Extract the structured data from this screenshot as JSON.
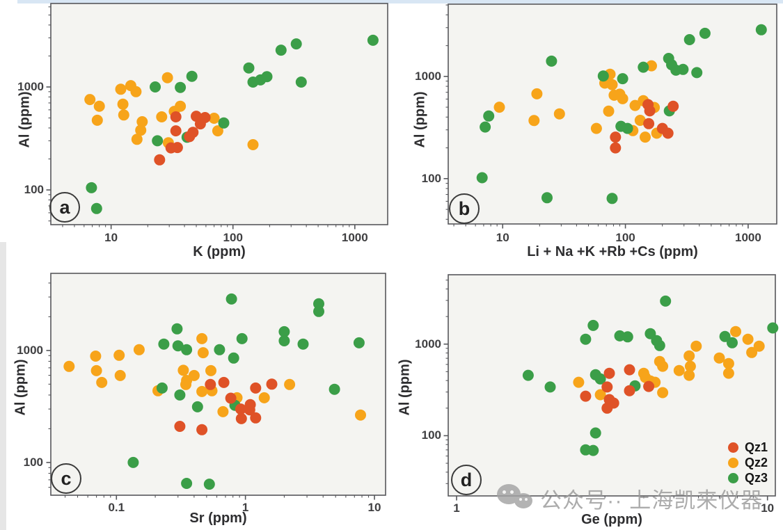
{
  "page": {
    "top_strip_color": "#d8e6f4",
    "left_strip_color": "#e6e6e6",
    "background": "#ffffff"
  },
  "styles": {
    "qz1_color": "#df5227",
    "qz2_color": "#f7a41a",
    "qz3_color": "#3b9e48",
    "plot_bg": "#f4f4f1",
    "border_color": "#56575b",
    "tick_color": "#56575b",
    "text_color": "#2e2e30",
    "watermark_color": "#9a9a9a"
  },
  "legend": {
    "location": "bottom-right-of-panel-d",
    "items": [
      {
        "label": "Qz1",
        "color": "#df5227"
      },
      {
        "label": "Qz2",
        "color": "#f7a41a"
      },
      {
        "label": "Qz3",
        "color": "#3b9e48"
      }
    ]
  },
  "watermark": {
    "icon": "wechat-icon",
    "text": "公众号·· 上海凯来仪器"
  },
  "chart_data": [
    {
      "panel_label": "a",
      "type": "scatter",
      "xlabel": "K (ppm)",
      "ylabel": "Al (ppm)",
      "xscale": "log",
      "yscale": "log",
      "xlim": [
        3.2,
        1860
      ],
      "ylim": [
        46,
        6470
      ],
      "xticks": [
        10,
        100,
        1000
      ],
      "yticks": [
        100,
        1000
      ],
      "grid": false,
      "series": [
        {
          "name": "Qz1",
          "points": [
            [
              50,
              520
            ],
            [
              59,
              505
            ],
            [
              54,
              438
            ],
            [
              34,
              513
            ],
            [
              34,
              375
            ],
            [
              47,
              363
            ],
            [
              44,
              330
            ],
            [
              35,
              258
            ],
            [
              31,
              256
            ],
            [
              25,
              196
            ]
          ]
        },
        {
          "name": "Qz2",
          "points": [
            [
              6.7,
              755
            ],
            [
              8,
              650
            ],
            [
              7.7,
              475
            ],
            [
              12,
              950
            ],
            [
              14.5,
              1030
            ],
            [
              16,
              900
            ],
            [
              12.5,
              680
            ],
            [
              12.7,
              535
            ],
            [
              18,
              460
            ],
            [
              17.5,
              380
            ],
            [
              16.3,
              310
            ],
            [
              26,
              513
            ],
            [
              33,
              580
            ],
            [
              37,
              650
            ],
            [
              29,
              1230
            ],
            [
              29.5,
              287
            ],
            [
              70,
              497
            ],
            [
              75,
              375
            ],
            [
              146,
              275
            ]
          ]
        },
        {
          "name": "Qz3",
          "points": [
            [
              6.9,
              105
            ],
            [
              7.6,
              66
            ],
            [
              23,
              1000
            ],
            [
              37,
              990
            ],
            [
              46,
              1270
            ],
            [
              24,
              300
            ],
            [
              42,
              325
            ],
            [
              84,
              447
            ],
            [
              135,
              1530
            ],
            [
              146,
              1115
            ],
            [
              168,
              1170
            ],
            [
              190,
              1260
            ],
            [
              248,
              2280
            ],
            [
              331,
              2620
            ],
            [
              363,
              1115
            ],
            [
              1410,
              2840
            ]
          ]
        }
      ]
    },
    {
      "panel_label": "b",
      "type": "scatter",
      "xlabel": "Li + Na +K +Rb +Cs (ppm)",
      "ylabel": "Al (ppm)",
      "xscale": "log",
      "yscale": "log",
      "xlim": [
        3.6,
        1710
      ],
      "ylim": [
        36,
        5090
      ],
      "xticks": [
        10,
        100,
        1000
      ],
      "yticks": [
        100,
        1000
      ],
      "grid": false,
      "series": [
        {
          "name": "Qz1",
          "points": [
            [
              83,
              255
            ],
            [
              83,
              200
            ],
            [
              153,
              530
            ],
            [
              155,
              345
            ],
            [
              158,
              460
            ],
            [
              200,
              310
            ],
            [
              245,
              510
            ],
            [
              222,
              278
            ]
          ]
        },
        {
          "name": "Qz2",
          "points": [
            [
              9.4,
              500
            ],
            [
              19,
              675
            ],
            [
              18,
              370
            ],
            [
              29,
              430
            ],
            [
              58,
              310
            ],
            [
              68,
              860
            ],
            [
              75,
              1050
            ],
            [
              78,
              830
            ],
            [
              81,
              655
            ],
            [
              90,
              670
            ],
            [
              95,
              605
            ],
            [
              73,
              457
            ],
            [
              120,
              520
            ],
            [
              140,
              578
            ],
            [
              163,
              1270
            ],
            [
              160,
              495
            ],
            [
              172,
              497
            ],
            [
              132,
              372
            ],
            [
              115,
              295
            ],
            [
              145,
              255
            ],
            [
              180,
              278
            ]
          ]
        },
        {
          "name": "Qz3",
          "points": [
            [
              6.8,
              102
            ],
            [
              7.7,
              410
            ],
            [
              7.2,
              320
            ],
            [
              25,
              1410
            ],
            [
              23,
              65
            ],
            [
              78,
              64
            ],
            [
              66,
              1010
            ],
            [
              95,
              950
            ],
            [
              92,
              325
            ],
            [
              104,
              310
            ],
            [
              228,
              460
            ],
            [
              140,
              1230
            ],
            [
              225,
              1500
            ],
            [
              238,
              1300
            ],
            [
              258,
              1150
            ],
            [
              295,
              1170
            ],
            [
              382,
              1090
            ],
            [
              333,
              2290
            ],
            [
              445,
              2640
            ],
            [
              1280,
              2860
            ]
          ]
        }
      ]
    },
    {
      "panel_label": "c",
      "type": "scatter",
      "xlabel": "Sr (ppm)",
      "ylabel": "Al (ppm)",
      "xscale": "log",
      "yscale": "log",
      "xlim": [
        0.031,
        12.2
      ],
      "ylim": [
        51,
        4880
      ],
      "xticks": [
        0.1,
        1,
        10
      ],
      "yticks": [
        100,
        1000
      ],
      "grid": false,
      "series": [
        {
          "name": "Qz1",
          "points": [
            [
              0.31,
              210
            ],
            [
              0.46,
              196
            ],
            [
              0.535,
              497
            ],
            [
              0.68,
              518
            ],
            [
              0.77,
              375
            ],
            [
              0.92,
              300
            ],
            [
              0.93,
              246
            ],
            [
              1.08,
              295
            ],
            [
              1.09,
              328
            ],
            [
              1.2,
              250
            ],
            [
              1.2,
              462
            ],
            [
              1.6,
              500
            ]
          ]
        },
        {
          "name": "Qz2",
          "points": [
            [
              0.043,
              720
            ],
            [
              0.069,
              890
            ],
            [
              0.07,
              660
            ],
            [
              0.077,
              518
            ],
            [
              0.105,
              905
            ],
            [
              0.107,
              597
            ],
            [
              0.15,
              1015
            ],
            [
              0.21,
              437
            ],
            [
              0.33,
              665
            ],
            [
              0.345,
              497
            ],
            [
              0.35,
              540
            ],
            [
              0.4,
              597
            ],
            [
              0.46,
              430
            ],
            [
              0.46,
              1275
            ],
            [
              0.47,
              955
            ],
            [
              0.54,
              660
            ],
            [
              0.55,
              437
            ],
            [
              0.67,
              284
            ],
            [
              0.86,
              378
            ],
            [
              1.4,
              378
            ],
            [
              2.2,
              497
            ],
            [
              7.8,
              265
            ]
          ]
        },
        {
          "name": "Qz3",
          "points": [
            [
              0.135,
              100
            ],
            [
              0.233,
              1140
            ],
            [
              0.226,
              462
            ],
            [
              0.295,
              1560
            ],
            [
              0.3,
              1100
            ],
            [
              0.31,
              400
            ],
            [
              0.35,
              1015
            ],
            [
              0.35,
              65
            ],
            [
              0.425,
              314
            ],
            [
              0.525,
              64
            ],
            [
              0.63,
              1015
            ],
            [
              0.78,
              2880
            ],
            [
              0.81,
              855
            ],
            [
              0.83,
              324
            ],
            [
              0.94,
              1275
            ],
            [
              2.0,
              1470
            ],
            [
              2.0,
              1220
            ],
            [
              2.8,
              1140
            ],
            [
              3.7,
              2610
            ],
            [
              3.7,
              2230
            ],
            [
              4.9,
              450
            ],
            [
              7.6,
              1170
            ]
          ]
        }
      ]
    },
    {
      "panel_label": "d",
      "type": "scatter",
      "xlabel": "Ge (ppm)",
      "ylabel": "Al (ppm)",
      "xscale": "log",
      "yscale": "log",
      "xlim": [
        0.94,
        10.6
      ],
      "ylim": [
        22,
        5720
      ],
      "xticks": [
        1,
        10
      ],
      "yticks": [
        100,
        1000
      ],
      "grid": false,
      "series": [
        {
          "name": "Qz1",
          "points": [
            [
              2.6,
              270
            ],
            [
              3.05,
              340
            ],
            [
              3.1,
              248
            ],
            [
              3.05,
              200
            ],
            [
              3.2,
              227
            ],
            [
              3.1,
              480
            ],
            [
              3.6,
              525
            ],
            [
              3.6,
              310
            ],
            [
              4.15,
              345
            ]
          ]
        },
        {
          "name": "Qz2",
          "points": [
            [
              2.47,
              383
            ],
            [
              2.9,
              280
            ],
            [
              4.0,
              480
            ],
            [
              4.05,
              433
            ],
            [
              4.2,
              396
            ],
            [
              4.35,
              383
            ],
            [
              4.6,
              295
            ],
            [
              4.5,
              646
            ],
            [
              4.6,
              573
            ],
            [
              5.2,
              515
            ],
            [
              5.6,
              456
            ],
            [
              5.65,
              573
            ],
            [
              5.6,
              743
            ],
            [
              5.9,
              950
            ],
            [
              7.0,
              705
            ],
            [
              7.5,
              613
            ],
            [
              7.5,
              481
            ],
            [
              7.9,
              1370
            ],
            [
              8.65,
              1130
            ],
            [
              8.9,
              810
            ],
            [
              9.4,
              950
            ]
          ]
        },
        {
          "name": "Qz3",
          "points": [
            [
              1.7,
              456
            ],
            [
              2.0,
              340
            ],
            [
              2.6,
              1130
            ],
            [
              2.75,
              1600
            ],
            [
              2.8,
              463
            ],
            [
              2.9,
              417
            ],
            [
              2.8,
              107
            ],
            [
              2.6,
              70
            ],
            [
              2.75,
              69
            ],
            [
              3.35,
              1230
            ],
            [
              3.55,
              1200
            ],
            [
              3.75,
              350
            ],
            [
              4.2,
              1300
            ],
            [
              4.4,
              1090
            ],
            [
              4.5,
              965
            ],
            [
              4.7,
              2950
            ],
            [
              7.3,
              1210
            ],
            [
              7.7,
              1035
            ],
            [
              10.4,
              1500
            ]
          ]
        }
      ]
    }
  ]
}
